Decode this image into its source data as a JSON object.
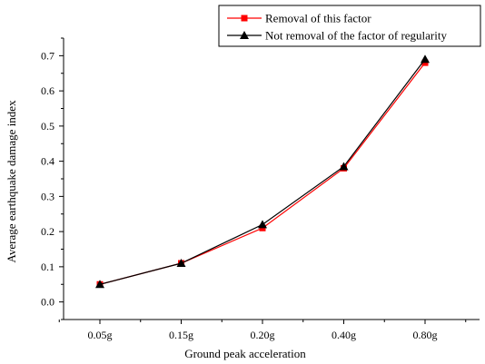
{
  "chart_data": {
    "type": "line",
    "categories": [
      "0.05g",
      "0.15g",
      "0.20g",
      "0.40g",
      "0.80g"
    ],
    "series": [
      {
        "name": "Removal of this factor",
        "color": "#ff0000",
        "marker": "square",
        "values": [
          0.05,
          0.11,
          0.21,
          0.38,
          0.68
        ]
      },
      {
        "name": "Not removal of the factor of regularity",
        "color": "#000000",
        "marker": "triangle",
        "values": [
          0.05,
          0.11,
          0.22,
          0.385,
          0.69
        ]
      }
    ],
    "xlabel": "Ground peak acceleration",
    "ylabel": "Average earthquake damage index",
    "ylim": [
      -0.05,
      0.75
    ],
    "yticks": [
      "0.0",
      "0.1",
      "0.2",
      "0.3",
      "0.4",
      "0.5",
      "0.6",
      "0.7"
    ],
    "grid": false,
    "legend_position": "top-right"
  }
}
